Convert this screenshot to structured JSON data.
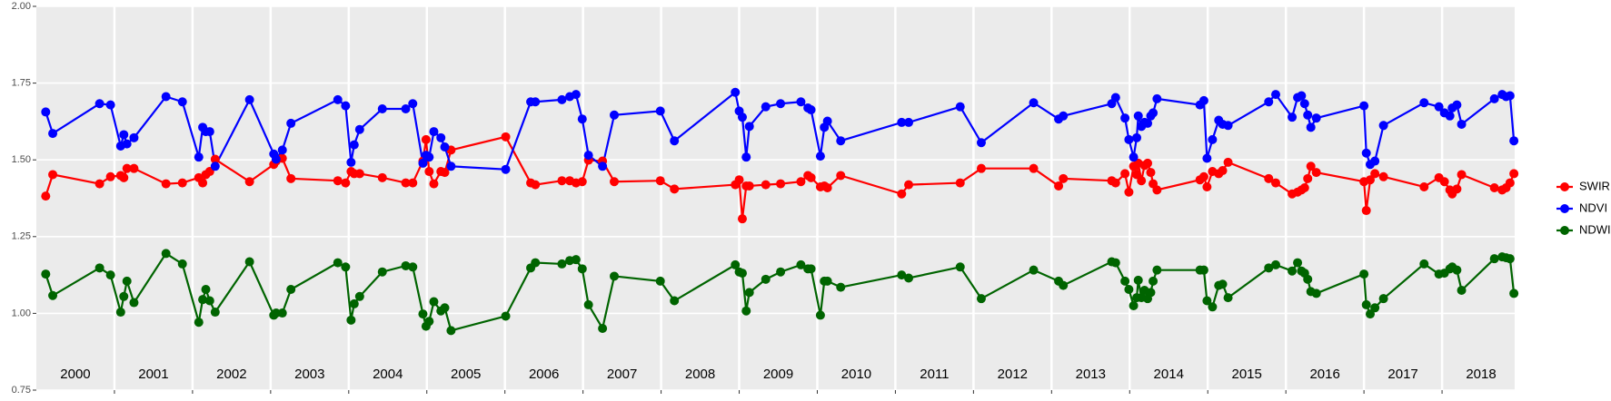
{
  "chart_data": {
    "type": "line",
    "x": [
      2000.12,
      2000.21,
      2000.81,
      2000.95,
      2001.08,
      2001.12,
      2001.16,
      2001.25,
      2001.66,
      2001.87,
      2002.08,
      2002.13,
      2002.17,
      2002.22,
      2002.29,
      2002.73,
      2003.04,
      2003.07,
      2003.15,
      2003.26,
      2003.86,
      2003.96,
      2004.03,
      2004.07,
      2004.14,
      2004.43,
      2004.73,
      2004.82,
      2004.95,
      2004.99,
      2005.03,
      2005.09,
      2005.18,
      2005.23,
      2005.31,
      2006.01,
      2006.33,
      2006.39,
      2006.73,
      2006.83,
      2006.91,
      2006.99,
      2007.07,
      2007.25,
      2007.4,
      2007.99,
      2008.17,
      2008.95,
      2009.0,
      2009.04,
      2009.09,
      2009.13,
      2009.34,
      2009.53,
      2009.79,
      2009.88,
      2009.92,
      2010.04,
      2010.09,
      2010.13,
      2010.3,
      2011.08,
      2011.17,
      2011.83,
      2012.1,
      2012.77,
      2013.09,
      2013.15,
      2013.77,
      2013.82,
      2013.94,
      2013.99,
      2014.05,
      2014.09,
      2014.11,
      2014.15,
      2014.19,
      2014.23,
      2014.27,
      2014.3,
      2014.35,
      2014.9,
      2014.95,
      2014.99,
      2015.06,
      2015.14,
      2015.19,
      2015.26,
      2015.78,
      2015.87,
      2016.08,
      2016.15,
      2016.2,
      2016.24,
      2016.28,
      2016.32,
      2016.39,
      2017.0,
      2017.03,
      2017.08,
      2017.14,
      2017.25,
      2017.77,
      2017.96,
      2018.03,
      2018.1,
      2018.13,
      2018.19,
      2018.25,
      2018.67,
      2018.77,
      2018.82,
      2018.87,
      2018.92
    ],
    "series": [
      {
        "name": "SWIR",
        "color": "#ff0000",
        "values": [
          1.382,
          1.452,
          1.422,
          1.445,
          1.449,
          1.442,
          1.472,
          1.472,
          1.422,
          1.425,
          1.442,
          1.425,
          1.452,
          1.462,
          1.502,
          1.429,
          1.485,
          1.496,
          1.505,
          1.439,
          1.432,
          1.425,
          1.462,
          1.455,
          1.455,
          1.442,
          1.425,
          1.425,
          1.496,
          1.566,
          1.462,
          1.422,
          1.462,
          1.459,
          1.532,
          1.575,
          1.425,
          1.419,
          1.432,
          1.432,
          1.425,
          1.429,
          1.499,
          1.496,
          1.429,
          1.432,
          1.405,
          1.419,
          1.435,
          1.308,
          1.415,
          1.415,
          1.419,
          1.422,
          1.429,
          1.449,
          1.442,
          1.412,
          1.415,
          1.409,
          1.449,
          1.389,
          1.419,
          1.425,
          1.472,
          1.472,
          1.415,
          1.439,
          1.432,
          1.425,
          1.455,
          1.395,
          1.479,
          1.452,
          1.489,
          1.432,
          1.482,
          1.489,
          1.459,
          1.422,
          1.402,
          1.435,
          1.445,
          1.412,
          1.462,
          1.455,
          1.465,
          1.492,
          1.439,
          1.425,
          1.389,
          1.395,
          1.402,
          1.409,
          1.439,
          1.479,
          1.459,
          1.429,
          1.335,
          1.435,
          1.455,
          1.445,
          1.412,
          1.442,
          1.429,
          1.402,
          1.389,
          1.405,
          1.452,
          1.409,
          1.402,
          1.409,
          1.425,
          1.455
        ]
      },
      {
        "name": "NDVI",
        "color": "#0000ff",
        "values": [
          1.656,
          1.586,
          1.683,
          1.679,
          1.545,
          1.582,
          1.552,
          1.572,
          1.706,
          1.689,
          1.509,
          1.606,
          1.592,
          1.592,
          1.479,
          1.696,
          1.519,
          1.502,
          1.532,
          1.619,
          1.696,
          1.676,
          1.492,
          1.549,
          1.599,
          1.666,
          1.666,
          1.683,
          1.489,
          1.515,
          1.509,
          1.592,
          1.572,
          1.542,
          1.479,
          1.469,
          1.689,
          1.689,
          1.696,
          1.706,
          1.713,
          1.633,
          1.515,
          1.479,
          1.646,
          1.659,
          1.562,
          1.72,
          1.659,
          1.639,
          1.509,
          1.609,
          1.673,
          1.683,
          1.689,
          1.669,
          1.663,
          1.512,
          1.606,
          1.626,
          1.562,
          1.622,
          1.622,
          1.673,
          1.556,
          1.686,
          1.633,
          1.643,
          1.683,
          1.703,
          1.636,
          1.566,
          1.509,
          1.572,
          1.643,
          1.609,
          1.622,
          1.619,
          1.643,
          1.653,
          1.699,
          1.679,
          1.693,
          1.505,
          1.566,
          1.629,
          1.616,
          1.612,
          1.689,
          1.713,
          1.639,
          1.703,
          1.709,
          1.683,
          1.646,
          1.606,
          1.636,
          1.676,
          1.522,
          1.485,
          1.496,
          1.612,
          1.686,
          1.673,
          1.653,
          1.643,
          1.669,
          1.679,
          1.616,
          1.699,
          1.713,
          1.706,
          1.709,
          1.562
        ]
      },
      {
        "name": "NDWI",
        "color": "#006400",
        "values": [
          1.128,
          1.058,
          1.148,
          1.125,
          1.004,
          1.055,
          1.105,
          1.035,
          1.195,
          1.161,
          0.971,
          1.045,
          1.078,
          1.041,
          1.004,
          1.168,
          0.994,
          1.001,
          1.001,
          1.078,
          1.165,
          1.151,
          0.978,
          1.031,
          1.055,
          1.135,
          1.155,
          1.151,
          0.998,
          0.958,
          0.974,
          1.038,
          1.008,
          1.018,
          0.944,
          0.991,
          1.148,
          1.165,
          1.161,
          1.172,
          1.175,
          1.145,
          1.028,
          0.951,
          1.121,
          1.105,
          1.041,
          1.158,
          1.135,
          1.131,
          1.008,
          1.068,
          1.111,
          1.135,
          1.158,
          1.145,
          1.145,
          0.994,
          1.105,
          1.105,
          1.085,
          1.125,
          1.115,
          1.151,
          1.048,
          1.141,
          1.105,
          1.091,
          1.168,
          1.165,
          1.105,
          1.078,
          1.025,
          1.051,
          1.108,
          1.051,
          1.075,
          1.048,
          1.068,
          1.105,
          1.141,
          1.141,
          1.141,
          1.041,
          1.021,
          1.091,
          1.095,
          1.051,
          1.148,
          1.158,
          1.138,
          1.165,
          1.138,
          1.131,
          1.111,
          1.071,
          1.065,
          1.128,
          1.028,
          0.998,
          1.018,
          1.048,
          1.161,
          1.128,
          1.131,
          1.145,
          1.151,
          1.141,
          1.075,
          1.178,
          1.184,
          1.181,
          1.178,
          1.065
        ]
      }
    ],
    "xlim": [
      2000,
      2018.93
    ],
    "xticks": [
      2001,
      2002,
      2003,
      2004,
      2005,
      2006,
      2007,
      2008,
      2009,
      2010,
      2011,
      2012,
      2013,
      2014,
      2015,
      2016,
      2017,
      2018
    ],
    "year_labels": [
      {
        "value": 2000.5,
        "label": "2000"
      },
      {
        "value": 2001.5,
        "label": "2001"
      },
      {
        "value": 2002.5,
        "label": "2002"
      },
      {
        "value": 2003.5,
        "label": "2003"
      },
      {
        "value": 2004.5,
        "label": "2004"
      },
      {
        "value": 2005.5,
        "label": "2005"
      },
      {
        "value": 2006.5,
        "label": "2006"
      },
      {
        "value": 2007.5,
        "label": "2007"
      },
      {
        "value": 2008.5,
        "label": "2008"
      },
      {
        "value": 2009.5,
        "label": "2009"
      },
      {
        "value": 2010.5,
        "label": "2010"
      },
      {
        "value": 2011.5,
        "label": "2011"
      },
      {
        "value": 2012.5,
        "label": "2012"
      },
      {
        "value": 2013.5,
        "label": "2013"
      },
      {
        "value": 2014.5,
        "label": "2014"
      },
      {
        "value": 2015.5,
        "label": "2015"
      },
      {
        "value": 2016.5,
        "label": "2016"
      },
      {
        "value": 2017.5,
        "label": "2017"
      },
      {
        "value": 2018.5,
        "label": "2018"
      }
    ],
    "ylim": [
      0.75,
      2.0
    ],
    "yticks": [
      0.75,
      {
        "value": 1.0,
        "label": "1.00"
      },
      1.25,
      {
        "value": 1.5,
        "label": "1.50"
      },
      1.75,
      {
        "value": 2.0,
        "label": "2.00"
      }
    ],
    "grid": true,
    "legend": "right"
  }
}
